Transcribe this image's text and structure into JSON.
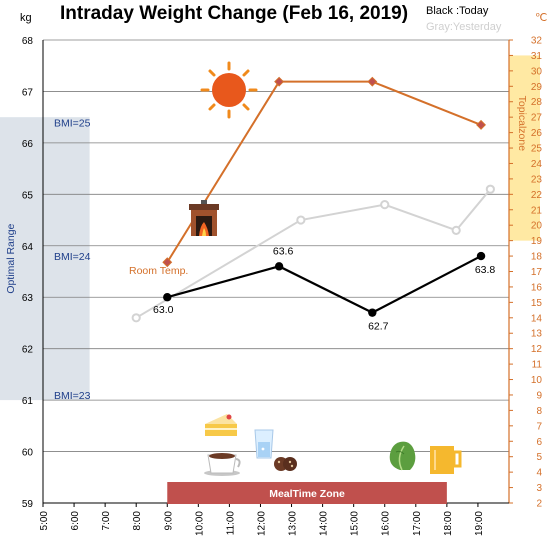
{
  "chart_data": {
    "type": "line",
    "title": "Intraday Weight Change (Feb 16, 2019)",
    "legend": {
      "today": "Black :Today",
      "yesterday": "Gray:Yesterday"
    },
    "y_left": {
      "unit": "kg",
      "range": [
        59,
        68
      ],
      "ticks": [
        59,
        60,
        61,
        62,
        63,
        64,
        65,
        66,
        67,
        68
      ]
    },
    "y_right": {
      "unit": "℃",
      "range": [
        2,
        32
      ],
      "step": 1
    },
    "x": {
      "range": [
        5,
        20
      ],
      "tick_labels": [
        "5:00",
        "6:00",
        "7:00",
        "8:00",
        "9:00",
        "10:00",
        "11:00",
        "12:00",
        "13:00",
        "14:00",
        "15:00",
        "16:00",
        "17:00",
        "18:00",
        "19:00"
      ]
    },
    "series": [
      {
        "name": "Today",
        "color": "#000000",
        "points": [
          [
            9.0,
            63.0
          ],
          [
            12.6,
            63.6
          ],
          [
            15.6,
            62.7
          ],
          [
            19.1,
            63.8
          ]
        ],
        "labels": [
          "63.0",
          "63.6",
          "62.7",
          "63.8"
        ]
      },
      {
        "name": "Yesterday",
        "color": "#d3d3d3",
        "points": [
          [
            8.0,
            62.6
          ],
          [
            13.3,
            64.5
          ],
          [
            16.0,
            64.8
          ],
          [
            18.3,
            64.3
          ],
          [
            19.4,
            65.1
          ]
        ]
      },
      {
        "name": "Room Temp.",
        "color": "#d4702a",
        "axis": "right",
        "points": [
          [
            9.0,
            17.6
          ],
          [
            12.6,
            29.3
          ],
          [
            15.6,
            29.3
          ],
          [
            19.1,
            26.5
          ]
        ]
      }
    ],
    "bands": {
      "optimal_range": {
        "label": "Optimal Range",
        "y": [
          61,
          66.5
        ],
        "x": [
          5,
          6.5
        ],
        "color": "#dde3ea"
      },
      "tropical_zone": {
        "label": "Topicalzone",
        "y_right": [
          19,
          31
        ],
        "color": "#ffe9a3"
      },
      "meal_time_zone": {
        "label": "MealTime Zone",
        "x": [
          9,
          18
        ]
      }
    },
    "bmi_labels": [
      {
        "text": "BMI=25",
        "y": 66.4
      },
      {
        "text": "BMI=24",
        "y": 63.8
      },
      {
        "text": "BMI=23",
        "y": 61.1
      }
    ],
    "room_temp_label": "Room Temp.",
    "icons": [
      "sun-icon",
      "fireplace-icon",
      "cake-icon",
      "coffee-icon",
      "water-glass-icon",
      "cookies-icon",
      "lettuce-icon",
      "beer-icon"
    ],
    "colors": {
      "today": "#000000",
      "yesterday": "#d3d3d3",
      "temp": "#d4702a",
      "meal_band": "#c0504d",
      "optimal": "#1f3f8a",
      "tropical_text": "#d4702a"
    }
  }
}
